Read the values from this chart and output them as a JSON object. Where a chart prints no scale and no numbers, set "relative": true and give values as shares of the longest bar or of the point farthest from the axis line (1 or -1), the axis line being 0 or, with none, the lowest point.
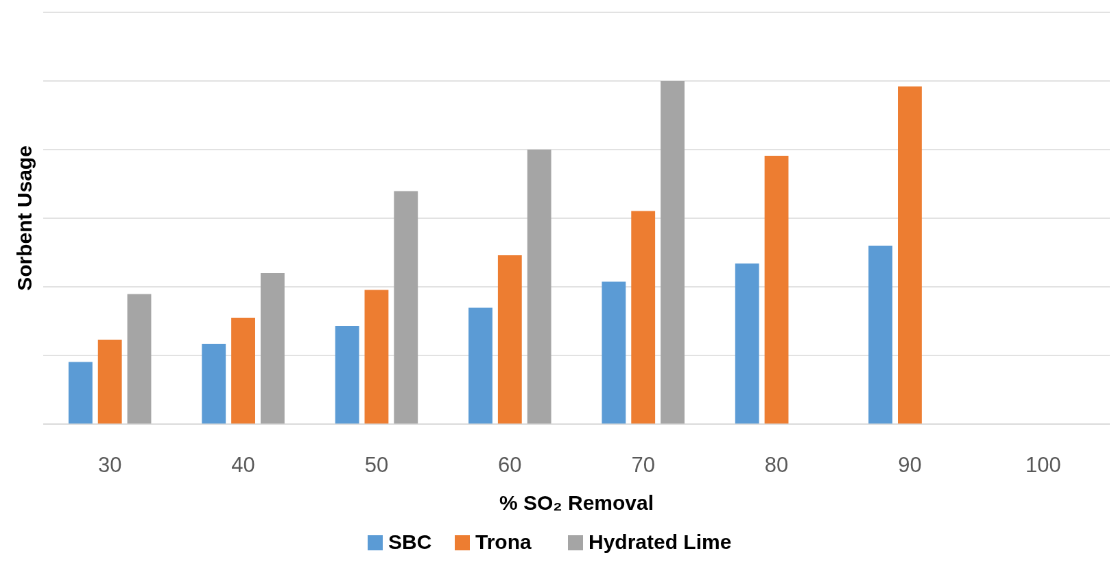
{
  "chart_data": {
    "type": "bar",
    "relative": true,
    "xlabel": "% SO₂ Removal",
    "ylabel": "Sorbent Usage",
    "categories": [
      "30",
      "40",
      "50",
      "60",
      "70",
      "80",
      "90",
      "100"
    ],
    "series": [
      {
        "name": "SBC",
        "color": "#5b9bd5",
        "values": [
          0.181,
          0.234,
          0.286,
          0.339,
          0.415,
          0.468,
          0.52,
          null
        ]
      },
      {
        "name": "Trona",
        "color": "#ed7d31",
        "values": [
          0.246,
          0.31,
          0.391,
          0.492,
          0.621,
          0.782,
          0.984,
          null
        ]
      },
      {
        "name": "Hydrated Lime",
        "color": "#a5a5a5",
        "values": [
          0.379,
          0.44,
          0.679,
          0.8,
          1,
          null,
          null,
          null
        ]
      }
    ],
    "tick_labels": "x",
    "grid": "y",
    "legend": "bottom"
  }
}
